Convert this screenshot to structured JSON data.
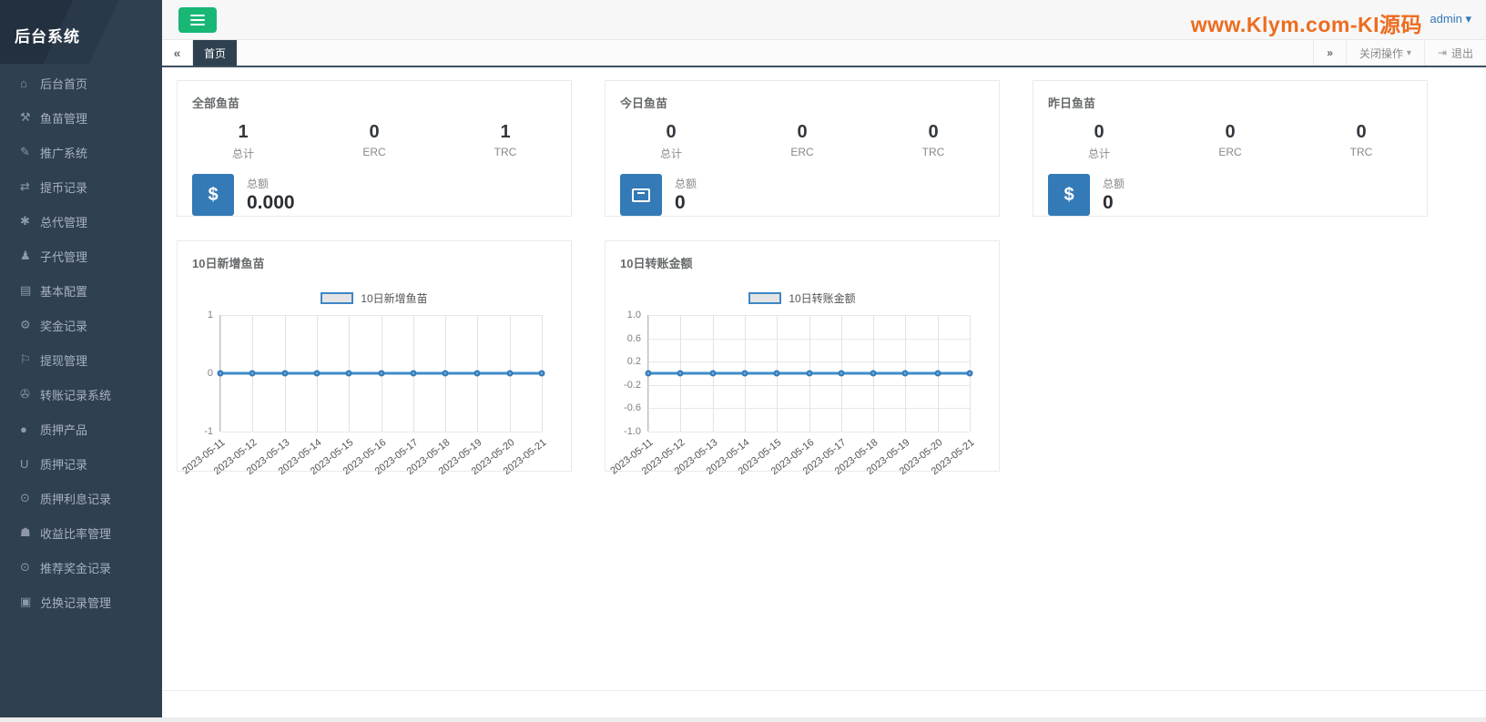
{
  "app": {
    "title": "后台系统"
  },
  "topbar": {
    "watermark": "www.Klym.com-KI源码",
    "user_menu": "admin",
    "caret": "▾"
  },
  "tabstrip": {
    "back": "«",
    "forward": "»",
    "active_tab": "首页",
    "close_ops": "关闭操作",
    "logout": "退出",
    "logout_icon": "⇥"
  },
  "sidebar": {
    "items": [
      {
        "glyph": "⌂",
        "label": "后台首页"
      },
      {
        "glyph": "⚒",
        "label": "鱼苗管理"
      },
      {
        "glyph": "✎",
        "label": "推广系统"
      },
      {
        "glyph": "⇄",
        "label": "提币记录"
      },
      {
        "glyph": "✱",
        "label": "总代管理"
      },
      {
        "glyph": "♟",
        "label": "子代管理"
      },
      {
        "glyph": "▤",
        "label": "基本配置"
      },
      {
        "glyph": "⚙",
        "label": "奖金记录"
      },
      {
        "glyph": "⚐",
        "label": "提现管理"
      },
      {
        "glyph": "✇",
        "label": "转账记录系统"
      },
      {
        "glyph": "●",
        "label": "质押产品"
      },
      {
        "glyph": "U",
        "label": "质押记录"
      },
      {
        "glyph": "⊙",
        "label": "质押利息记录"
      },
      {
        "glyph": "☗",
        "label": "收益比率管理"
      },
      {
        "glyph": "⊙",
        "label": "推荐奖金记录"
      },
      {
        "glyph": "▣",
        "label": "兑换记录管理"
      }
    ]
  },
  "cards": [
    {
      "title": "全部鱼苗",
      "stats": [
        {
          "value": "1",
          "label": "总计"
        },
        {
          "value": "0",
          "label": "ERC"
        },
        {
          "value": "1",
          "label": "TRC"
        }
      ],
      "icon_glyph": "$",
      "total_label": "总额",
      "total_value": "0.000"
    },
    {
      "title": "今日鱼苗",
      "stats": [
        {
          "value": "0",
          "label": "总计"
        },
        {
          "value": "0",
          "label": "ERC"
        },
        {
          "value": "0",
          "label": "TRC"
        }
      ],
      "icon": "archive",
      "total_label": "总额",
      "total_value": "0"
    },
    {
      "title": "昨日鱼苗",
      "stats": [
        {
          "value": "0",
          "label": "总计"
        },
        {
          "value": "0",
          "label": "ERC"
        },
        {
          "value": "0",
          "label": "TRC"
        }
      ],
      "icon_glyph": "$",
      "total_label": "总额",
      "total_value": "0"
    }
  ],
  "chart_data": [
    {
      "type": "line",
      "title": "10日新增鱼苗",
      "legend": "10日新增鱼苗",
      "x": [
        "2023-05-11",
        "2023-05-12",
        "2023-05-13",
        "2023-05-14",
        "2023-05-15",
        "2023-05-16",
        "2023-05-17",
        "2023-05-18",
        "2023-05-19",
        "2023-05-20",
        "2023-05-21"
      ],
      "values": [
        0,
        0,
        0,
        0,
        0,
        0,
        0,
        0,
        0,
        0,
        0
      ],
      "ylim": [
        -1,
        1
      ],
      "yticks": [
        {
          "label": "1",
          "value": 1
        },
        {
          "label": "0",
          "value": 0
        },
        {
          "label": "-1",
          "value": -1
        }
      ],
      "grid": true,
      "legend_position": "top"
    },
    {
      "type": "line",
      "title": "10日转账金额",
      "legend": "10日转账金额",
      "x": [
        "2023-05-11",
        "2023-05-12",
        "2023-05-13",
        "2023-05-14",
        "2023-05-15",
        "2023-05-16",
        "2023-05-17",
        "2023-05-18",
        "2023-05-19",
        "2023-05-20",
        "2023-05-21"
      ],
      "values": [
        0,
        0,
        0,
        0,
        0,
        0,
        0,
        0,
        0,
        0,
        0
      ],
      "ylim": [
        -1,
        1
      ],
      "yticks": [
        {
          "label": "1.0",
          "value": 1
        },
        {
          "label": "0.6",
          "value": 0.6
        },
        {
          "label": "0.2",
          "value": 0.2
        },
        {
          "label": "-0.2",
          "value": -0.2
        },
        {
          "label": "-0.6",
          "value": -0.6
        },
        {
          "label": "-1.0",
          "value": -1
        }
      ],
      "grid": true,
      "legend_position": "top"
    }
  ],
  "colors": {
    "sidebar_bg": "#2f4050",
    "menu_toggle_green": "#18b776",
    "stat_icon_blue": "#337ab7",
    "chart_line_blue": "#3f8cc9",
    "watermark_orange": "#ed6c1f",
    "user_link_blue": "#337ab7"
  }
}
